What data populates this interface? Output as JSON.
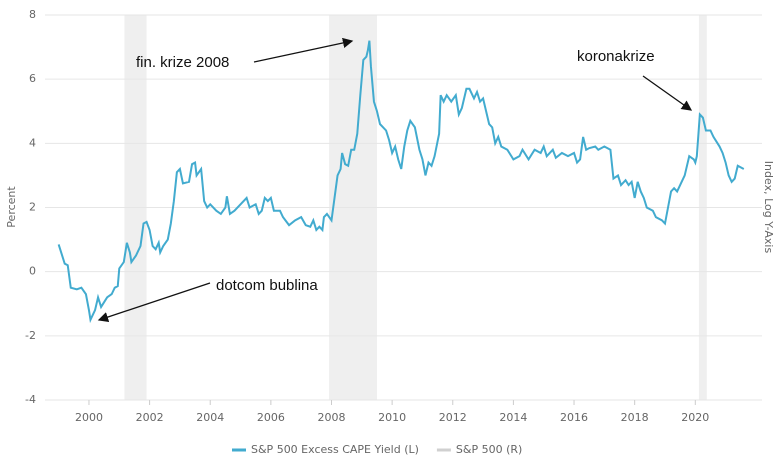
{
  "chart_data": {
    "type": "line",
    "y_label": "Percent",
    "y2_label": "Index, Log Y-Axis",
    "xlim": [
      1998.55,
      2022.2
    ],
    "xticks": [
      2000,
      2002,
      2004,
      2006,
      2008,
      2010,
      2012,
      2014,
      2016,
      2018,
      2020
    ],
    "ylim": [
      -4,
      8
    ],
    "yticks": [
      -4,
      -2,
      0,
      2,
      4,
      6,
      8
    ],
    "grid": true,
    "shaded_periods": [
      [
        2001.17,
        2001.9
      ],
      [
        2007.92,
        2009.5
      ],
      [
        2020.12,
        2020.38
      ]
    ],
    "shade_color": "#efefef",
    "annotations": [
      "fin. krize 2008",
      "koronakrize",
      "dotcom bublina"
    ],
    "series": [
      {
        "name": "S&P 500 Excess CAPE Yield (L)",
        "color": "#42abcf",
        "x": [
          1999.0,
          1999.2,
          1999.3,
          1999.4,
          1999.6,
          1999.75,
          1999.9,
          2000.0,
          2000.05,
          2000.2,
          2000.3,
          2000.4,
          2000.6,
          2000.75,
          2000.85,
          2000.95,
          2001.0,
          2001.15,
          2001.25,
          2001.35,
          2001.4,
          2001.55,
          2001.7,
          2001.8,
          2001.9,
          2002.0,
          2002.1,
          2002.2,
          2002.3,
          2002.35,
          2002.45,
          2002.6,
          2002.7,
          2002.8,
          2002.9,
          2003.0,
          2003.1,
          2003.3,
          2003.4,
          2003.5,
          2003.55,
          2003.7,
          2003.8,
          2003.9,
          2004.0,
          2004.2,
          2004.35,
          2004.5,
          2004.55,
          2004.65,
          2004.8,
          2005.0,
          2005.2,
          2005.3,
          2005.5,
          2005.6,
          2005.7,
          2005.8,
          2005.9,
          2006.0,
          2006.1,
          2006.3,
          2006.4,
          2006.6,
          2006.8,
          2007.0,
          2007.15,
          2007.3,
          2007.4,
          2007.5,
          2007.6,
          2007.7,
          2007.75,
          2007.85,
          2008.0,
          2008.1,
          2008.2,
          2008.3,
          2008.35,
          2008.45,
          2008.55,
          2008.65,
          2008.75,
          2008.85,
          2008.95,
          2009.05,
          2009.15,
          2009.2,
          2009.25,
          2009.3,
          2009.4,
          2009.5,
          2009.6,
          2009.8,
          2009.9,
          2010.0,
          2010.1,
          2010.2,
          2010.3,
          2010.4,
          2010.5,
          2010.6,
          2010.75,
          2010.9,
          2011.0,
          2011.1,
          2011.2,
          2011.3,
          2011.4,
          2011.55,
          2011.6,
          2011.7,
          2011.8,
          2011.95,
          2012.1,
          2012.2,
          2012.3,
          2012.45,
          2012.55,
          2012.7,
          2012.8,
          2012.9,
          2013.0,
          2013.1,
          2013.2,
          2013.3,
          2013.4,
          2013.5,
          2013.6,
          2013.8,
          2014.0,
          2014.2,
          2014.3,
          2014.5,
          2014.7,
          2014.9,
          2015.0,
          2015.1,
          2015.3,
          2015.4,
          2015.6,
          2015.8,
          2016.0,
          2016.1,
          2016.2,
          2016.3,
          2016.4,
          2016.5,
          2016.7,
          2016.8,
          2017.0,
          2017.2,
          2017.3,
          2017.45,
          2017.55,
          2017.7,
          2017.8,
          2017.9,
          2018.0,
          2018.1,
          2018.2,
          2018.3,
          2018.4,
          2018.6,
          2018.7,
          2018.9,
          2019.0,
          2019.1,
          2019.2,
          2019.3,
          2019.4,
          2019.5,
          2019.65,
          2019.8,
          2019.95,
          2020.0,
          2020.05,
          2020.15,
          2020.25,
          2020.35,
          2020.5,
          2020.6,
          2020.8,
          2020.9,
          2021.0,
          2021.1,
          2021.2,
          2021.3,
          2021.4,
          2021.5,
          2021.6
        ],
        "values": [
          0.85,
          0.25,
          0.2,
          -0.5,
          -0.55,
          -0.5,
          -0.7,
          -1.2,
          -1.5,
          -1.2,
          -0.8,
          -1.1,
          -0.8,
          -0.7,
          -0.5,
          -0.45,
          0.1,
          0.3,
          0.9,
          0.6,
          0.3,
          0.5,
          0.8,
          1.5,
          1.55,
          1.3,
          0.8,
          0.7,
          0.9,
          0.6,
          0.8,
          1.0,
          1.5,
          2.2,
          3.1,
          3.2,
          2.75,
          2.8,
          3.35,
          3.4,
          3.0,
          3.2,
          2.2,
          2.0,
          2.1,
          1.9,
          1.8,
          2.0,
          2.35,
          1.8,
          1.9,
          2.1,
          2.3,
          2.0,
          2.1,
          1.8,
          1.9,
          2.3,
          2.2,
          2.3,
          1.9,
          1.9,
          1.7,
          1.45,
          1.6,
          1.7,
          1.45,
          1.4,
          1.6,
          1.3,
          1.4,
          1.3,
          1.7,
          1.8,
          1.6,
          2.3,
          3.0,
          3.2,
          3.7,
          3.35,
          3.3,
          3.8,
          3.8,
          4.3,
          5.5,
          6.6,
          6.7,
          6.9,
          7.2,
          6.4,
          5.3,
          5.0,
          4.6,
          4.4,
          4.1,
          3.7,
          3.9,
          3.5,
          3.2,
          3.9,
          4.4,
          4.7,
          4.5,
          3.8,
          3.5,
          3.0,
          3.4,
          3.3,
          3.6,
          4.3,
          5.5,
          5.3,
          5.5,
          5.3,
          5.5,
          4.9,
          5.1,
          5.7,
          5.7,
          5.4,
          5.6,
          5.3,
          5.4,
          5.0,
          4.6,
          4.5,
          4.0,
          4.2,
          3.9,
          3.8,
          3.5,
          3.6,
          3.8,
          3.5,
          3.8,
          3.7,
          3.9,
          3.6,
          3.8,
          3.55,
          3.7,
          3.6,
          3.7,
          3.4,
          3.5,
          4.2,
          3.8,
          3.85,
          3.9,
          3.8,
          3.9,
          3.8,
          2.9,
          3.0,
          2.7,
          2.85,
          2.7,
          2.8,
          2.3,
          2.8,
          2.5,
          2.3,
          2.0,
          1.9,
          1.7,
          1.6,
          1.5,
          2.0,
          2.5,
          2.6,
          2.5,
          2.7,
          3.0,
          3.6,
          3.5,
          3.4,
          3.6,
          4.9,
          4.8,
          4.4,
          4.4,
          4.2,
          3.9,
          3.7,
          3.4,
          3.0,
          2.8,
          2.9,
          3.3,
          3.25,
          3.2
        ]
      }
    ],
    "inactive_series": [
      {
        "name": "S&P 500 (R)",
        "color": "#d0d0d0"
      }
    ]
  }
}
